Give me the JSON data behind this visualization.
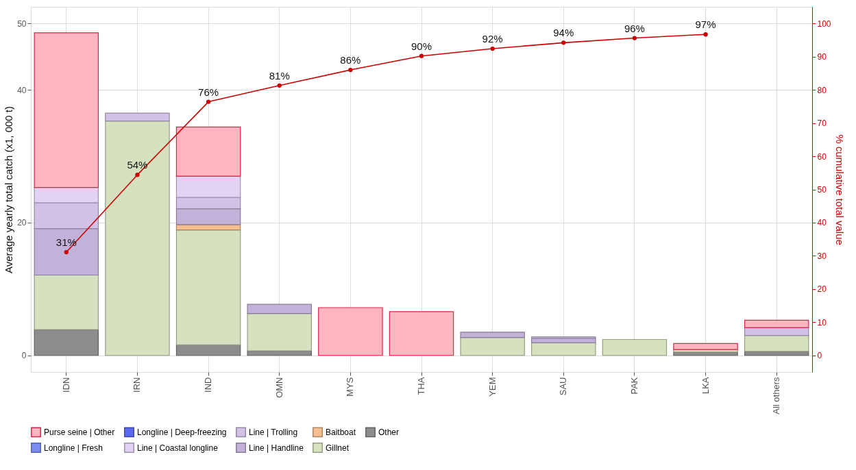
{
  "chart_data": {
    "type": "bar",
    "stacked": true,
    "ylabel": "Average yearly total catch (x1, 000 t)",
    "y2label": "% cumulative total value",
    "categories": [
      "IDN",
      "IRN",
      "IND",
      "OMN",
      "MYS",
      "THA",
      "YEM",
      "SAU",
      "PAK",
      "LKA",
      "All others"
    ],
    "series": [
      {
        "name": "Other",
        "color": "#8c8c8c",
        "values": [
          3.9,
          null,
          1.6,
          0.7,
          null,
          null,
          null,
          null,
          null,
          0.5,
          0.6
        ]
      },
      {
        "name": "Gillnet",
        "color": "#d6e2bf",
        "values": [
          8.2,
          35.3,
          17.3,
          5.6,
          null,
          null,
          2.7,
          1.9,
          2.4,
          0.4,
          2.4
        ]
      },
      {
        "name": "Baitboat",
        "color": "#f7bf8f",
        "values": [
          null,
          null,
          0.8,
          null,
          null,
          null,
          null,
          null,
          null,
          null,
          null
        ]
      },
      {
        "name": "Line | Handline",
        "color": "#c2b1d8",
        "values": [
          7.0,
          null,
          2.4,
          1.4,
          null,
          null,
          0.8,
          0.7,
          null,
          null,
          null
        ]
      },
      {
        "name": "Line | Trolling",
        "color": "#d2c2e8",
        "values": [
          3.9,
          1.2,
          1.7,
          null,
          null,
          null,
          null,
          0.2,
          null,
          null,
          1.2
        ]
      },
      {
        "name": "Line | Coastal longline",
        "color": "#e2d3f5",
        "values": [
          2.3,
          null,
          3.2,
          null,
          null,
          null,
          null,
          null,
          null,
          null,
          null
        ]
      },
      {
        "name": "Longline | Deep-freezing",
        "color": "#5b68f0",
        "values": [
          null,
          null,
          null,
          null,
          null,
          null,
          null,
          null,
          null,
          null,
          null
        ]
      },
      {
        "name": "Longline | Fresh",
        "color": "#7b8cf5",
        "values": [
          null,
          null,
          null,
          null,
          null,
          null,
          null,
          null,
          null,
          null,
          null
        ]
      },
      {
        "name": "Purse seine | Other",
        "color": "#ffb6c1",
        "values": [
          23.3,
          null,
          7.4,
          null,
          7.2,
          6.6,
          null,
          null,
          null,
          0.9,
          1.1
        ]
      },
      {
        "type": "line",
        "axis": "y2",
        "color": "#cc0000",
        "marker": "circle",
        "values": [
          31.1,
          54.4,
          76.4,
          81.3,
          86.0,
          90.2,
          92.4,
          94.2,
          95.6,
          96.7,
          null
        ],
        "value_labels": [
          "31%",
          "54%",
          "76%",
          "81%",
          "86%",
          "90%",
          "92%",
          "94%",
          "96%",
          "97%",
          null
        ]
      }
    ],
    "ylim": [
      -2.5,
      52.5
    ],
    "yticks": [
      0,
      20,
      40,
      50
    ],
    "y2lim": [
      -5,
      105
    ],
    "y2ticks": [
      0,
      10,
      20,
      30,
      40,
      50,
      60,
      70,
      80,
      90,
      100
    ],
    "grid": true,
    "legend": "bottom"
  }
}
